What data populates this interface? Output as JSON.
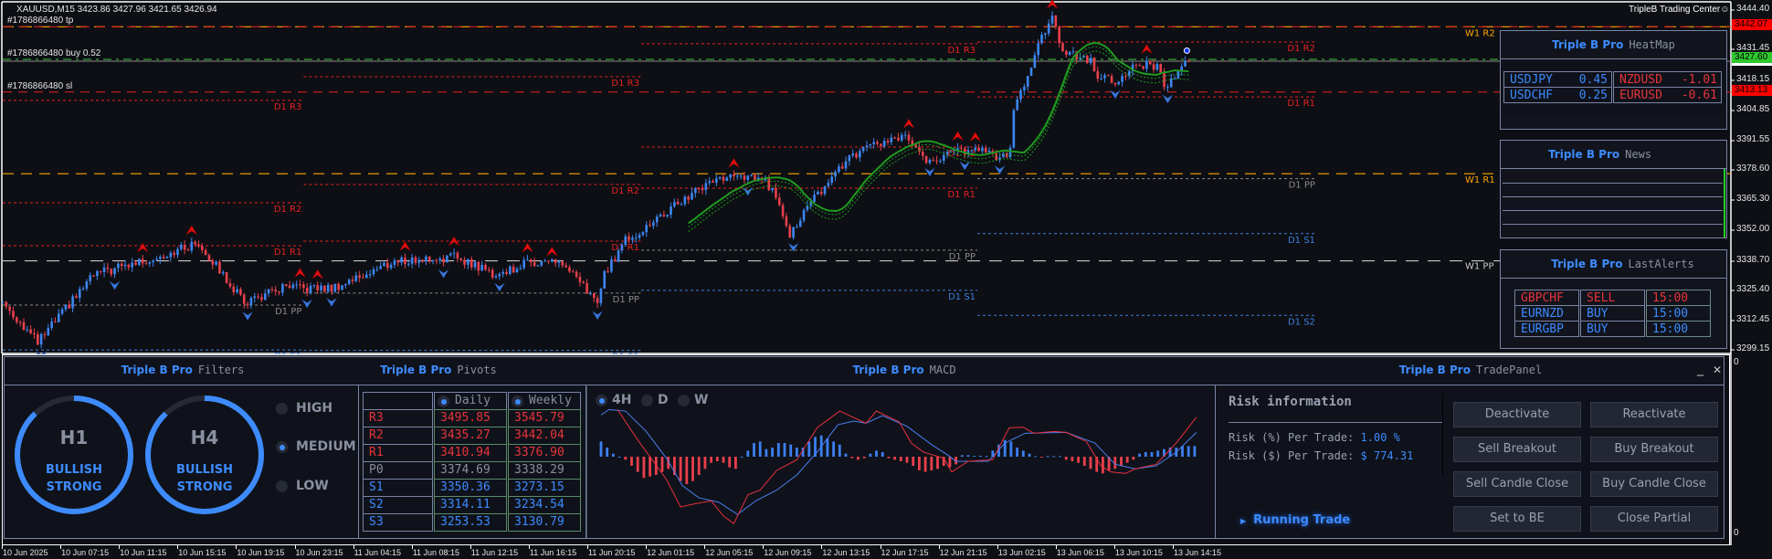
{
  "chart": {
    "symbol_line": "XAUUSD,M15  3423.86 3427.96 3421.65 3426.94",
    "brand_label": "TripleB Trading Center",
    "brand_icon": "smiley-icon",
    "orders": [
      {
        "label": "#1786866480 tp",
        "price": 3442.07,
        "color": "#e82020"
      },
      {
        "label": "#1786866480 buy 0.52",
        "price": 3427.6,
        "color": "#3cc83c"
      },
      {
        "label": "#1786866480 sl",
        "price": 3413.13,
        "color": "#e82020"
      }
    ],
    "price_axis": [
      "3444.40",
      "3431.45",
      "3418.15",
      "3404.85",
      "3391.55",
      "3378.60",
      "3365.30",
      "3352.00",
      "3338.70",
      "3325.40",
      "3312.45",
      "3299.15"
    ],
    "price_tags": [
      {
        "value": "3442.07",
        "color": "#ff0000"
      },
      {
        "value": "3427.60",
        "color": "#2ec82e"
      },
      {
        "value": "3413.13",
        "color": "#ff0000"
      }
    ],
    "weekly_pivots": [
      {
        "label": "W1 R2",
        "price": 3442.04,
        "color": "#ffa500"
      },
      {
        "label": "W1 R1",
        "price": 3376.9,
        "color": "#ffa500"
      },
      {
        "label": "W1 PP",
        "price": 3338.29,
        "color": "#c8c8c8"
      }
    ],
    "daily_pivots": [
      {
        "start_bar": -5,
        "end_bar": 86,
        "levels": [
          {
            "label": "D1 R3",
            "price": 3409.4
          },
          {
            "label": "D1 R2",
            "price": 3364.0
          },
          {
            "label": "D1 R1",
            "price": 3345.0
          },
          {
            "label": "D1 PP",
            "price": 3318.7
          },
          {
            "label": "D1 S1",
            "price": 3298.8
          }
        ]
      },
      {
        "start_bar": 86,
        "end_bar": 182.5,
        "levels": [
          {
            "label": "D1 R3",
            "price": 3419.9
          },
          {
            "label": "D1 R2",
            "price": 3372.1
          },
          {
            "label": "D1 R1",
            "price": 3347.0
          },
          {
            "label": "D1 PP",
            "price": 3324.0
          },
          {
            "label": "D1 S1",
            "price": 3298.6
          }
        ]
      },
      {
        "start_bar": 182.5,
        "end_bar": 278.6,
        "levels": [
          {
            "label": "D1 R3",
            "price": 3434.5
          },
          {
            "label": "D1 R2",
            "price": 3388.7
          },
          {
            "label": "D1 R1",
            "price": 3370.5
          },
          {
            "label": "D1 PP",
            "price": 3343.0
          },
          {
            "label": "D1 S1",
            "price": 3325.2
          }
        ]
      },
      {
        "start_bar": 278.6,
        "end_bar": 375.7,
        "levels": [
          {
            "label": "D1 R2",
            "price": 3435.27
          },
          {
            "label": "D1 R1",
            "price": 3410.94
          },
          {
            "label": "D1 PP",
            "price": 3374.69
          },
          {
            "label": "D1 S1",
            "price": 3350.36
          },
          {
            "label": "D1 S2",
            "price": 3314.11
          }
        ]
      }
    ],
    "price_path": [
      [
        0,
        3320
      ],
      [
        10,
        3302
      ],
      [
        26,
        3332
      ],
      [
        44,
        3340
      ],
      [
        56,
        3346
      ],
      [
        69,
        3320
      ],
      [
        80,
        3326
      ],
      [
        94,
        3326
      ],
      [
        112,
        3338
      ],
      [
        130,
        3340
      ],
      [
        141,
        3332
      ],
      [
        151,
        3338
      ],
      [
        159,
        3338
      ],
      [
        170,
        3320
      ],
      [
        172,
        3332
      ],
      [
        178,
        3348
      ],
      [
        183,
        3352
      ],
      [
        196,
        3367
      ],
      [
        204,
        3375
      ],
      [
        217,
        3375
      ],
      [
        222,
        3365
      ],
      [
        225,
        3350
      ],
      [
        230,
        3362
      ],
      [
        240,
        3381
      ],
      [
        248,
        3389
      ],
      [
        258,
        3393
      ],
      [
        264,
        3383
      ],
      [
        274,
        3387
      ],
      [
        282,
        3387
      ],
      [
        285,
        3383
      ],
      [
        288,
        3387
      ],
      [
        289,
        3405
      ],
      [
        298,
        3441
      ],
      [
        300,
        3447
      ],
      [
        303,
        3431
      ],
      [
        311,
        3427
      ],
      [
        313,
        3421
      ],
      [
        318,
        3417
      ],
      [
        324,
        3425
      ],
      [
        330,
        3425
      ],
      [
        332,
        3415
      ],
      [
        336,
        3421
      ],
      [
        339,
        3427
      ]
    ],
    "colors": {
      "bull": "#3d85f0",
      "bear": "#e8404c",
      "ma": "#1f9a1f"
    },
    "time_axis": [
      "10 Jun 2025",
      "10 Jun 07:15",
      "10 Jun 11:15",
      "10 Jun 15:15",
      "10 Jun 19:15",
      "10 Jun 23:15",
      "11 Jun 04:15",
      "11 Jun 08:15",
      "11 Jun 12:15",
      "11 Jun 16:15",
      "11 Jun 20:15",
      "12 Jun 01:15",
      "12 Jun 05:15",
      "12 Jun 09:15",
      "12 Jun 13:15",
      "12 Jun 17:15",
      "12 Jun 21:15",
      "13 Jun 02:15",
      "13 Jun 06:15",
      "13 Jun 10:15",
      "13 Jun 14:15"
    ],
    "sub_axis": [
      "0",
      "0"
    ]
  },
  "brand": "Triple B Pro",
  "heatmap": {
    "title": "HeatMap",
    "rows": [
      [
        {
          "sym": "USDJPY",
          "val": "0.45",
          "dir": "up"
        },
        {
          "sym": "NZDUSD",
          "val": "-1.01",
          "dir": "down"
        }
      ],
      [
        {
          "sym": "USDCHF",
          "val": "0.25",
          "dir": "up"
        },
        {
          "sym": "EURUSD",
          "val": "-0.61",
          "dir": "down"
        }
      ]
    ]
  },
  "news": {
    "title": "News"
  },
  "alerts": {
    "title": "LastAlerts",
    "rows": [
      {
        "pair": "GBPCHF",
        "side": "SELL",
        "time": "15:00",
        "dir": "down"
      },
      {
        "pair": "EURNZD",
        "side": "BUY",
        "time": "15:00",
        "dir": "up"
      },
      {
        "pair": "EURGBP",
        "side": "BUY",
        "time": "15:00",
        "dir": "up"
      }
    ]
  },
  "filters": {
    "title": "Filters",
    "gauges": [
      {
        "tf": "H1",
        "line1": "BULLISH",
        "line2": "STRONG",
        "fill": 0.88
      },
      {
        "tf": "H4",
        "line1": "BULLISH",
        "line2": "STRONG",
        "fill": 0.88
      }
    ],
    "levels": [
      {
        "label": "HIGH",
        "selected": false
      },
      {
        "label": "MEDIUM",
        "selected": true
      },
      {
        "label": "LOW",
        "selected": false
      }
    ]
  },
  "pivots": {
    "title": "Pivots",
    "headers": [
      "Daily",
      "Weekly"
    ],
    "selected": "both",
    "rows": [
      {
        "name": "R3",
        "daily": "3495.85",
        "weekly": "3545.79",
        "type": "r"
      },
      {
        "name": "R2",
        "daily": "3435.27",
        "weekly": "3442.04",
        "type": "r"
      },
      {
        "name": "R1",
        "daily": "3410.94",
        "weekly": "3376.90",
        "type": "r"
      },
      {
        "name": "P0",
        "daily": "3374.69",
        "weekly": "3338.29",
        "type": "p"
      },
      {
        "name": "S1",
        "daily": "3350.36",
        "weekly": "3273.15",
        "type": "s"
      },
      {
        "name": "S2",
        "daily": "3314.11",
        "weekly": "3234.54",
        "type": "s"
      },
      {
        "name": "S3",
        "daily": "3253.53",
        "weekly": "3130.79",
        "type": "s"
      }
    ]
  },
  "macd": {
    "title": "MACD",
    "timeframes": [
      {
        "label": "4H",
        "selected": true
      },
      {
        "label": "D",
        "selected": false
      },
      {
        "label": "W",
        "selected": false
      }
    ],
    "histogram": [
      5,
      3,
      1,
      0,
      -1,
      -3,
      -5,
      -7,
      -6.5,
      -6,
      -5,
      -4,
      -6,
      -8,
      -9,
      -8,
      -6,
      -4,
      -2,
      -1.5,
      -2,
      -3.5,
      -4,
      0,
      2,
      4.5,
      5,
      2.5,
      3,
      4.5,
      4.5,
      4,
      3,
      3,
      5,
      6.5,
      7,
      6,
      5,
      4,
      1,
      -0.5,
      -1,
      -0.5,
      1,
      2,
      1.5,
      -0.5,
      -1,
      -1.5,
      -2,
      -3,
      -4.5,
      -5,
      -4.5,
      -4,
      -3,
      -3.5,
      -2.5,
      0.5,
      0.5,
      0.3,
      0.3,
      0.2,
      2,
      4,
      5.5,
      5,
      3,
      2,
      1,
      0.2,
      -0.2,
      0.2,
      0.2,
      0.2,
      -1,
      -1.5,
      -2,
      -3,
      -4,
      -5,
      -5.5,
      -4.5,
      -4,
      -3,
      -2,
      -1,
      1,
      1.5,
      1.5,
      2,
      2.5,
      3,
      3,
      3.5,
      3.5,
      3.5
    ],
    "macd_line": [
      [
        2.7,
        15.5
      ],
      [
        6,
        5.5
      ],
      [
        10.7,
        -7.5
      ],
      [
        13,
        -16.5
      ],
      [
        15.3,
        -15.5
      ],
      [
        18,
        -14.5
      ],
      [
        20,
        -19.5
      ],
      [
        21.7,
        -22
      ],
      [
        24,
        -12.5
      ],
      [
        26,
        -11
      ],
      [
        28.7,
        -4.5
      ],
      [
        32,
        -1
      ],
      [
        35.3,
        9.5
      ],
      [
        39,
        15
      ],
      [
        43.3,
        11
      ],
      [
        45,
        15
      ],
      [
        48.7,
        11.5
      ],
      [
        50.7,
        4.5
      ],
      [
        52.7,
        1.5
      ],
      [
        56,
        -0.5
      ],
      [
        57.3,
        -5
      ],
      [
        60,
        -1.5
      ],
      [
        64,
        -1
      ],
      [
        66.7,
        9.5
      ],
      [
        69,
        9.7
      ],
      [
        70.7,
        7.7
      ],
      [
        74,
        8.3
      ],
      [
        76,
        8
      ],
      [
        79.3,
        5
      ],
      [
        81.7,
        -3
      ],
      [
        83.3,
        -5
      ],
      [
        85.7,
        -5.5
      ],
      [
        87.3,
        -4
      ],
      [
        90.7,
        -2.5
      ],
      [
        94,
        4.5
      ],
      [
        97.3,
        13
      ]
    ],
    "signal_line": [
      [
        0,
        13.7
      ],
      [
        1.3,
        15.5
      ],
      [
        4,
        15
      ],
      [
        7.3,
        8.5
      ],
      [
        10.7,
        -0.5
      ],
      [
        13.3,
        -9.5
      ],
      [
        16,
        -13.5
      ],
      [
        19.3,
        -15
      ],
      [
        22.3,
        -19
      ],
      [
        25.3,
        -14.5
      ],
      [
        28.7,
        -11
      ],
      [
        32,
        -6
      ],
      [
        35.3,
        1.5
      ],
      [
        38.7,
        10.5
      ],
      [
        41.3,
        11.7
      ],
      [
        43.3,
        11
      ],
      [
        46,
        13.5
      ],
      [
        50,
        10
      ],
      [
        54,
        4
      ],
      [
        56.7,
        0.5
      ],
      [
        58,
        -1.5
      ],
      [
        63.3,
        -1.5
      ],
      [
        66,
        4.5
      ],
      [
        69.3,
        7.7
      ],
      [
        76,
        8
      ],
      [
        80.7,
        4.5
      ],
      [
        84,
        -2.5
      ],
      [
        87.3,
        -4
      ],
      [
        90.7,
        -3
      ],
      [
        94,
        1.5
      ],
      [
        97.3,
        8
      ]
    ],
    "colors": {
      "positive": "#3d7ff0",
      "negative": "#e8404c",
      "macd": "#e83040",
      "signal": "#4a7ff0"
    }
  },
  "trade": {
    "title": "TradePanel",
    "minimize": "_",
    "close": "✕",
    "risk_title": "Risk information",
    "risk_pct_label": "Risk (%) Per Trade:",
    "risk_pct": "1.00 %",
    "risk_usd_label": "Risk ($) Per Trade:",
    "risk_usd": "$ 774.31",
    "running": "Running Trade",
    "buttons": [
      "Deactivate",
      "Reactivate",
      "Sell Breakout",
      "Buy Breakout",
      "Sell Candle Close",
      "Buy Candle Close",
      "Set to BE",
      "Close Partial"
    ]
  }
}
